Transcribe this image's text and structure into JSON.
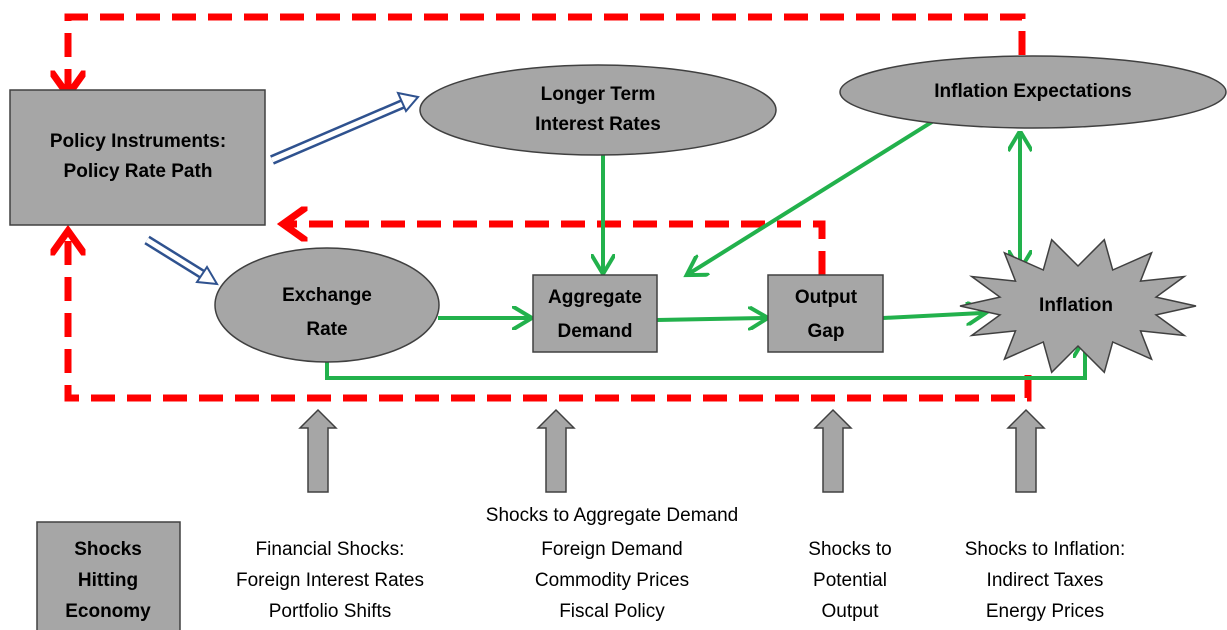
{
  "nodes": [
    {
      "lines": [
        "Policy Instruments:",
        "Policy Rate Path"
      ]
    },
    {
      "lines": [
        "Longer Term",
        "Interest Rates"
      ]
    },
    {
      "lines": [
        "Inflation Expectations"
      ]
    },
    {
      "lines": [
        "Exchange",
        "Rate"
      ]
    },
    {
      "lines": [
        "Aggregate",
        "Demand"
      ]
    },
    {
      "lines": [
        "Output",
        "Gap"
      ]
    },
    {
      "lines": [
        "Inflation"
      ]
    }
  ],
  "shocks": {
    "box": [
      "Shocks",
      "Hitting",
      "Economy"
    ],
    "columns": [
      {
        "lines": [
          "Financial Shocks:",
          "Foreign Interest Rates",
          "Portfolio Shifts"
        ]
      },
      {
        "lines": [
          "Shocks to Aggregate Demand",
          "Foreign Demand",
          "Commodity Prices",
          "Fiscal Policy"
        ]
      },
      {
        "lines": [
          "Shocks to",
          "Potential",
          "Output"
        ]
      },
      {
        "lines": [
          "Shocks to Inflation:",
          "Indirect Taxes",
          "Energy Prices"
        ]
      }
    ]
  }
}
